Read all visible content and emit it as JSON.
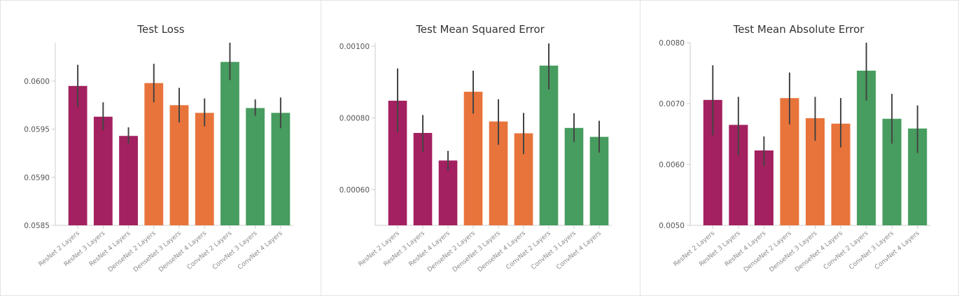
{
  "colors": {
    "resnet": "#a32160",
    "densenet": "#e8743b",
    "convnet": "#479c5f",
    "error_bar": "#444444",
    "axis": "#cccccc"
  },
  "chart_data": [
    {
      "type": "bar",
      "title": "Test Loss",
      "categories": [
        "ResNet 2 Layers",
        "ResNet 3 Layers",
        "ResNet 4 Layers",
        "DenseNet 2 Layers",
        "DenseNet 3 Layers",
        "DenseNet 4 Layers",
        "ConvNet 2 Layers",
        "ConvNet 3 Layers",
        "ConvNet 4 Layers"
      ],
      "values": [
        0.05995,
        0.05963,
        0.05943,
        0.05998,
        0.05975,
        0.05967,
        0.0602,
        0.05972,
        0.05967
      ],
      "error_low": [
        0.05973,
        0.05949,
        0.05935,
        0.05978,
        0.05957,
        0.05953,
        0.06001,
        0.05964,
        0.05951
      ],
      "error_high": [
        0.06017,
        0.05978,
        0.05952,
        0.06018,
        0.05993,
        0.05982,
        0.0604,
        0.05981,
        0.05983
      ],
      "ylim": [
        0.0585,
        0.0604
      ],
      "yticks": [
        0.0585,
        0.059,
        0.0595,
        0.06
      ],
      "ytick_labels": [
        "0.0585",
        "0.0590",
        "0.0595",
        "0.0600"
      ]
    },
    {
      "type": "bar",
      "title": "Test Mean Squared Error",
      "categories": [
        "ResNet 2 Layers",
        "ResNet 3 Layers",
        "ResNet 4 Layers",
        "DenseNet 2 Layers",
        "DenseNet 3 Layers",
        "DenseNet 4 Layers",
        "ConvNet 2 Layers",
        "ConvNet 3 Layers",
        "ConvNet 4 Layers"
      ],
      "values": [
        0.000848,
        0.000758,
        0.000681,
        0.000873,
        0.00079,
        0.000757,
        0.000946,
        0.000772,
        0.000747
      ],
      "error_low": [
        0.00076,
        0.000705,
        0.000652,
        0.000812,
        0.000725,
        0.000699,
        0.000879,
        0.000733,
        0.000703
      ],
      "error_high": [
        0.000938,
        0.000808,
        0.000708,
        0.000932,
        0.000852,
        0.000814,
        0.001008,
        0.000813,
        0.000792
      ],
      "ylim": [
        0.0005,
        0.00101
      ],
      "yticks": [
        0.0006,
        0.0008,
        0.001
      ],
      "ytick_labels": [
        "0.00060",
        "0.00080",
        "0.00100"
      ]
    },
    {
      "type": "bar",
      "title": "Test Mean Absolute Error",
      "categories": [
        "ResNet 2 Layers",
        "ResNet 3 Layers",
        "ResNet 4 Layers",
        "DenseNet 2 Layers",
        "DenseNet 3 Layers",
        "DenseNet 4 Layers",
        "ConvNet 2 Layers",
        "ConvNet 3 Layers",
        "ConvNet 4 Layers"
      ],
      "values": [
        0.00706,
        0.00665,
        0.00623,
        0.00709,
        0.00676,
        0.00667,
        0.00754,
        0.00675,
        0.00659
      ],
      "error_low": [
        0.00648,
        0.00615,
        0.00597,
        0.00666,
        0.00639,
        0.00628,
        0.00705,
        0.00634,
        0.00619
      ],
      "error_high": [
        0.00763,
        0.00711,
        0.00646,
        0.00751,
        0.00711,
        0.00709,
        0.00803,
        0.00716,
        0.00697
      ],
      "ylim": [
        0.005,
        0.008
      ],
      "yticks": [
        0.005,
        0.006,
        0.007,
        0.008
      ],
      "ytick_labels": [
        "0.0050",
        "0.0060",
        "0.0070",
        "0.0080"
      ]
    }
  ]
}
